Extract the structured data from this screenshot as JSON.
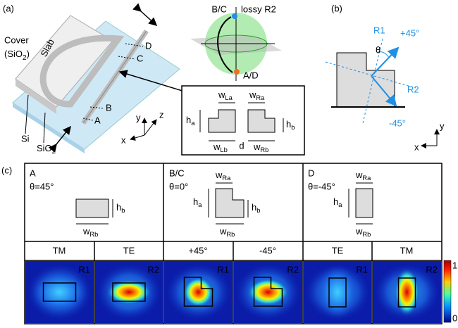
{
  "panel_a": {
    "label": "(a)",
    "cover": "Cover",
    "cover_material": {
      "pre": "(SiO",
      "sub": "2",
      "post": ")"
    },
    "slab": "Slab",
    "points": [
      "D",
      "C",
      "B",
      "A"
    ],
    "si": "Si",
    "sio2": {
      "base": "SiO",
      "sub": "2"
    },
    "sphere": {
      "top": "B/C",
      "lossy": "lossy R2",
      "bottom": "A/D"
    },
    "axes": {
      "x": "x",
      "y": "y",
      "z": "z"
    },
    "inset": {
      "w_la": {
        "base": "w",
        "sub": "La"
      },
      "w_ra": {
        "base": "w",
        "sub": "Ra"
      },
      "h_a": {
        "base": "h",
        "sub": "a"
      },
      "h_b": {
        "base": "h",
        "sub": "b"
      },
      "w_lb": {
        "base": "w",
        "sub": "Lb"
      },
      "d": "d",
      "w_rb": {
        "base": "w",
        "sub": "Rb"
      }
    }
  },
  "panel_b": {
    "label": "(b)",
    "r1": "R1",
    "plus45": "+45°",
    "theta": "θ",
    "r2": "R2",
    "minus45": "-45°",
    "y": "y",
    "x": "x"
  },
  "panel_c": {
    "label": "(c)",
    "cross_sections": [
      {
        "name": "A",
        "angle": "θ=45°",
        "h_b": {
          "base": "h",
          "sub": "b"
        },
        "w_rb": {
          "base": "w",
          "sub": "Rb"
        }
      },
      {
        "name": "B/C",
        "angle": "θ=0°",
        "w_ra": {
          "base": "w",
          "sub": "Ra"
        },
        "h_a": {
          "base": "h",
          "sub": "a"
        },
        "h_b": {
          "base": "h",
          "sub": "b"
        },
        "w_rb": {
          "base": "w",
          "sub": "Rb"
        }
      },
      {
        "name": "D",
        "angle": "θ=-45°",
        "w_ra": {
          "base": "w",
          "sub": "Ra"
        },
        "h_a": {
          "base": "h",
          "sub": "a"
        },
        "w_rb": {
          "base": "w",
          "sub": "Rb"
        }
      }
    ],
    "modes": [
      "TM",
      "TE",
      "+45°",
      "-45°",
      "TE",
      "TM"
    ],
    "regions": [
      "R1",
      "R2",
      "R1",
      "R2",
      "R1",
      "R2"
    ],
    "colorbar": {
      "max": 1,
      "min": 0
    }
  }
}
